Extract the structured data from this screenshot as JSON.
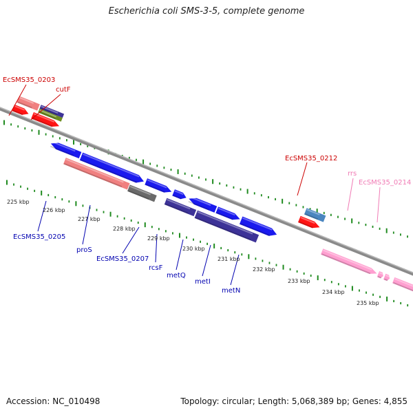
{
  "title": "Escherichia coli SMS-3-5, complete genome",
  "footer": {
    "accession": "Accession: NC_010498",
    "summary": "Topology: circular; Length: 5,068,389 bp; Genes: 4,855"
  },
  "colors": {
    "backbone": "#8a8a8a",
    "dots": "#1e8a1e",
    "blue": "#1a1aee",
    "navy": "#3d3398",
    "salmon": "#f08080",
    "red": "#ff1414",
    "pink": "#ff9fd0",
    "gray": "#6a6a6a",
    "steel": "#4a86c0",
    "olive": "#6e8e22",
    "label_red": "#cc0000",
    "label_blue": "#0000b0",
    "label_pink": "#f07ab4"
  },
  "tick_labels": [
    "225 kbp",
    "226 kbp",
    "227 kbp",
    "228 kbp",
    "229 kbp",
    "230 kbp",
    "231 kbp",
    "232 kbp",
    "233 kbp",
    "234 kbp",
    "235 kbp"
  ],
  "gene_labels": {
    "ecsms35_0203": "EcSMS35_0203",
    "cutf": "cutF",
    "ecsms35_0212": "EcSMS35_0212",
    "rrs": "rrs",
    "ecsms35_0214": "EcSMS35_0214",
    "ecsms35_0205": "EcSMS35_0205",
    "pros": "proS",
    "ecsms35_0207": "EcSMS35_0207",
    "rcsf": "rcsF",
    "metq": "metQ",
    "meti": "metI",
    "metn": "metN"
  }
}
